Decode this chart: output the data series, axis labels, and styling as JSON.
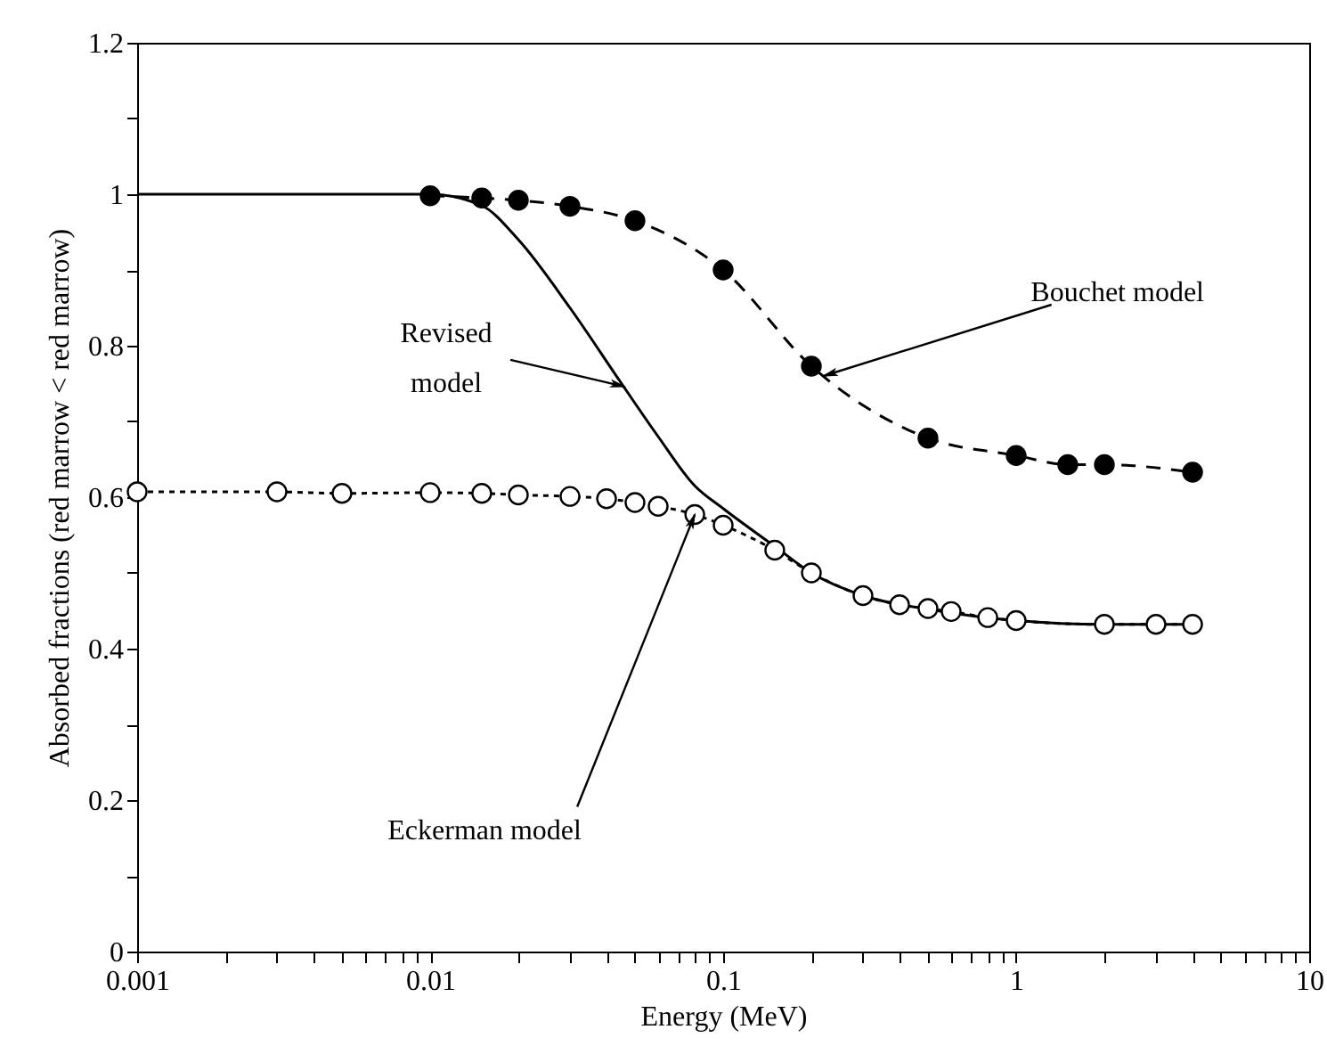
{
  "chart_data": {
    "type": "line",
    "xlabel": "Energy (MeV)",
    "ylabel": "Absorbed fractions (red marrow < red marrow)",
    "log": "x",
    "grid": false,
    "xlim": [
      0.001,
      10
    ],
    "xticks": [
      0.001,
      {
        "value": 0.002,
        "label": null
      },
      {
        "value": 0.003,
        "label": null
      },
      {
        "value": 0.004,
        "label": null
      },
      {
        "value": 0.005,
        "label": null
      },
      {
        "value": 0.006,
        "label": null
      },
      {
        "value": 0.007,
        "label": null
      },
      {
        "value": 0.008,
        "label": null
      },
      {
        "value": 0.009,
        "label": null
      },
      0.01,
      {
        "value": 0.02,
        "label": null
      },
      {
        "value": 0.03,
        "label": null
      },
      {
        "value": 0.04,
        "label": null
      },
      {
        "value": 0.05,
        "label": null
      },
      {
        "value": 0.06,
        "label": null
      },
      {
        "value": 0.07,
        "label": null
      },
      {
        "value": 0.08,
        "label": null
      },
      {
        "value": 0.09,
        "label": null
      },
      0.1,
      {
        "value": 0.2,
        "label": null
      },
      {
        "value": 0.3,
        "label": null
      },
      {
        "value": 0.4,
        "label": null
      },
      {
        "value": 0.5,
        "label": null
      },
      {
        "value": 0.6,
        "label": null
      },
      {
        "value": 0.7,
        "label": null
      },
      {
        "value": 0.8,
        "label": null
      },
      {
        "value": 0.9,
        "label": null
      },
      1,
      {
        "value": 2,
        "label": null
      },
      {
        "value": 3,
        "label": null
      },
      {
        "value": 4,
        "label": null
      },
      {
        "value": 5,
        "label": null
      },
      {
        "value": 6,
        "label": null
      },
      {
        "value": 7,
        "label": null
      },
      {
        "value": 8,
        "label": null
      },
      {
        "value": 9,
        "label": null
      },
      10
    ],
    "ylim": [
      0,
      1.2
    ],
    "yticks": [
      0,
      {
        "value": 0.1,
        "label": null
      },
      0.2,
      {
        "value": 0.3,
        "label": null
      },
      0.4,
      {
        "value": 0.5,
        "label": null
      },
      0.6,
      {
        "value": 0.7,
        "label": null
      },
      0.8,
      {
        "value": 0.9,
        "label": null
      },
      1,
      {
        "value": 1.1,
        "label": null
      },
      1.2
    ],
    "series": [
      {
        "color": "#000000",
        "line_style": "solid",
        "marker": "none",
        "x": [
          0.001,
          0.01,
          0.015,
          0.02,
          0.03,
          0.045,
          0.06,
          0.08,
          0.1,
          0.15,
          0.2,
          0.3,
          0.5,
          1,
          2,
          4
        ],
        "values": [
          1,
          1,
          0.985,
          0.94,
          0.85,
          0.75,
          0.68,
          0.615,
          0.585,
          0.535,
          0.5,
          0.47,
          0.452,
          0.437,
          0.432,
          0.432
        ]
      },
      {
        "color": "#ffffff",
        "line_style": "dotted",
        "marker": "circle",
        "x": [
          0.001,
          0.003,
          0.005,
          0.01,
          0.015,
          0.02,
          0.03,
          0.04,
          0.05,
          0.06,
          0.08,
          0.1,
          0.15,
          0.2,
          0.3,
          0.4,
          0.5,
          0.6,
          0.8,
          1,
          2,
          3,
          4
        ],
        "values": [
          0.607,
          0.607,
          0.605,
          0.606,
          0.605,
          0.603,
          0.601,
          0.598,
          0.593,
          0.588,
          0.577,
          0.563,
          0.53,
          0.5,
          0.47,
          0.458,
          0.453,
          0.449,
          0.441,
          0.437,
          0.432,
          0.432,
          0.432
        ]
      },
      {
        "color": "#000000",
        "line_style": "dashed",
        "marker": "circle",
        "x": [
          0.01,
          0.015,
          0.02,
          0.03,
          0.05,
          0.1,
          0.2,
          0.5,
          1,
          1.5,
          2,
          4
        ],
        "values": [
          0.998,
          0.995,
          0.992,
          0.984,
          0.965,
          0.9,
          0.773,
          0.678,
          0.655,
          0.643,
          0.643,
          0.633
        ]
      }
    ],
    "annotations": [
      {
        "text": "Revised model",
        "x": 0.046,
        "y": 0.746
      },
      {
        "text": "Bouchet model",
        "x": 0.22,
        "y": 0.76
      },
      {
        "text": "Eckerman model",
        "x": 0.08,
        "y": 0.577
      }
    ]
  }
}
